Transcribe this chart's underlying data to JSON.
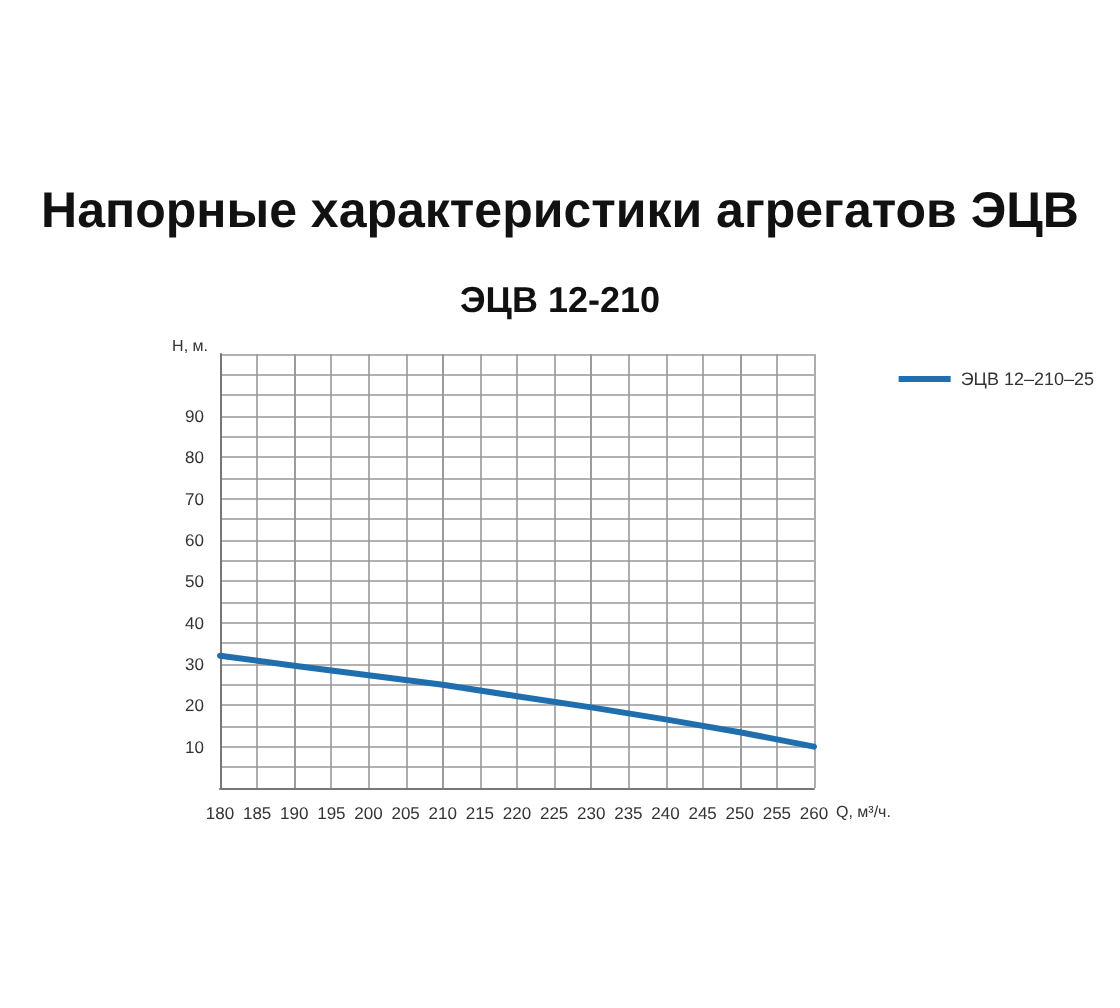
{
  "chart_data": {
    "type": "line",
    "title": "Напорные характеристики агрегатов ЭЦВ",
    "subtitle": "ЭЦВ 12-210",
    "xlabel": "Q, м³/ч.",
    "ylabel": "H, м.",
    "x": [
      180,
      190,
      200,
      210,
      220,
      230,
      240,
      250,
      260
    ],
    "series": [
      {
        "name": "ЭЦВ 12–210–25",
        "color": "#1f6fae",
        "values": [
          32,
          29.6,
          27.3,
          25,
          22.2,
          19.5,
          16.6,
          13.5,
          10
        ]
      }
    ],
    "xlim": [
      180,
      260
    ],
    "xticks": [
      180,
      185,
      190,
      195,
      200,
      205,
      210,
      215,
      220,
      225,
      230,
      235,
      240,
      245,
      250,
      255,
      260
    ],
    "ylim": [
      0,
      105
    ],
    "yticks": [
      {
        "value": 0,
        "label": null
      },
      {
        "value": 5,
        "label": null
      },
      10,
      {
        "value": 15,
        "label": null
      },
      20,
      {
        "value": 25,
        "label": null
      },
      30,
      {
        "value": 35,
        "label": null
      },
      40,
      {
        "value": 45,
        "label": null
      },
      50,
      {
        "value": 55,
        "label": null
      },
      60,
      {
        "value": 65,
        "label": null
      },
      70,
      {
        "value": 75,
        "label": null
      },
      80,
      {
        "value": 85,
        "label": null
      },
      90,
      {
        "value": 95,
        "label": null
      },
      {
        "value": 100,
        "label": null
      },
      {
        "value": 105,
        "label": null
      }
    ],
    "grid": true,
    "legend": "right",
    "marker": "none",
    "line_style": "solid"
  }
}
